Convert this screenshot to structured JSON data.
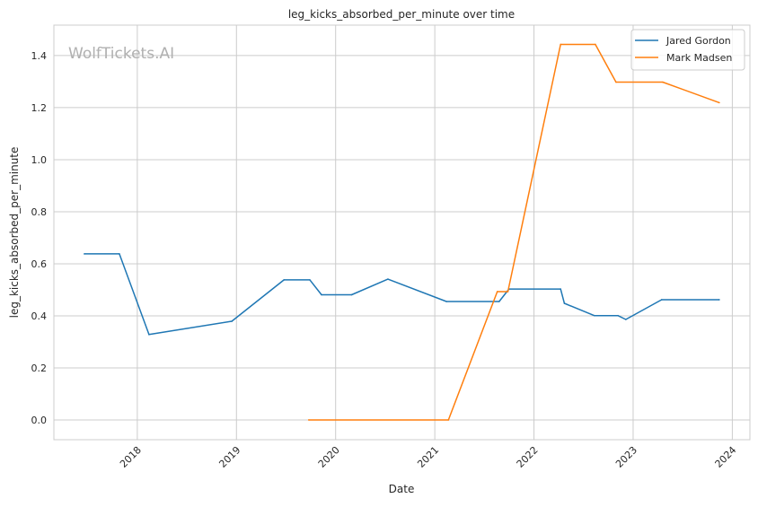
{
  "chart_data": {
    "type": "line",
    "title": "leg_kicks_absorbed_per_minute over time",
    "xlabel": "Date",
    "ylabel": "leg_kicks_absorbed_per_minute",
    "watermark": "WolfTickets.AI",
    "xlim": [
      "2017-02-28",
      "2024-03-06"
    ],
    "ylim": [
      -0.076,
      1.517
    ],
    "x_ticks": [
      "2018",
      "2019",
      "2020",
      "2021",
      "2022",
      "2023",
      "2024"
    ],
    "y_ticks": [
      "0.0",
      "0.2",
      "0.4",
      "0.6",
      "0.8",
      "1.0",
      "1.2",
      "1.4"
    ],
    "grid": true,
    "legend_position": "top-right",
    "series": [
      {
        "name": "Jared Gordon",
        "color": "#1f77b4",
        "x": [
          "2017-06-20",
          "2017-10-27",
          "2018-02-13",
          "2018-12-15",
          "2019-06-25",
          "2019-09-28",
          "2019-11-10",
          "2020-02-29",
          "2020-07-12",
          "2021-02-13",
          "2021-08-26",
          "2021-10-01",
          "2022-04-09",
          "2022-04-23",
          "2022-08-11",
          "2022-11-06",
          "2022-12-05",
          "2023-04-16",
          "2023-11-14"
        ],
        "y": [
          0.638,
          0.638,
          0.328,
          0.379,
          0.538,
          0.538,
          0.481,
          0.481,
          0.541,
          0.455,
          0.455,
          0.503,
          0.503,
          0.448,
          0.401,
          0.401,
          0.386,
          0.462,
          0.462
        ]
      },
      {
        "name": "Mark Madsen",
        "color": "#ff7f0e",
        "x": [
          "2019-09-24",
          "2021-02-20",
          "2021-08-19",
          "2021-09-27",
          "2022-04-09",
          "2022-08-15",
          "2022-10-30",
          "2023-04-20",
          "2023-11-14"
        ],
        "y": [
          0.0,
          0.0,
          0.493,
          0.493,
          1.443,
          1.443,
          1.298,
          1.298,
          1.219
        ]
      }
    ]
  }
}
